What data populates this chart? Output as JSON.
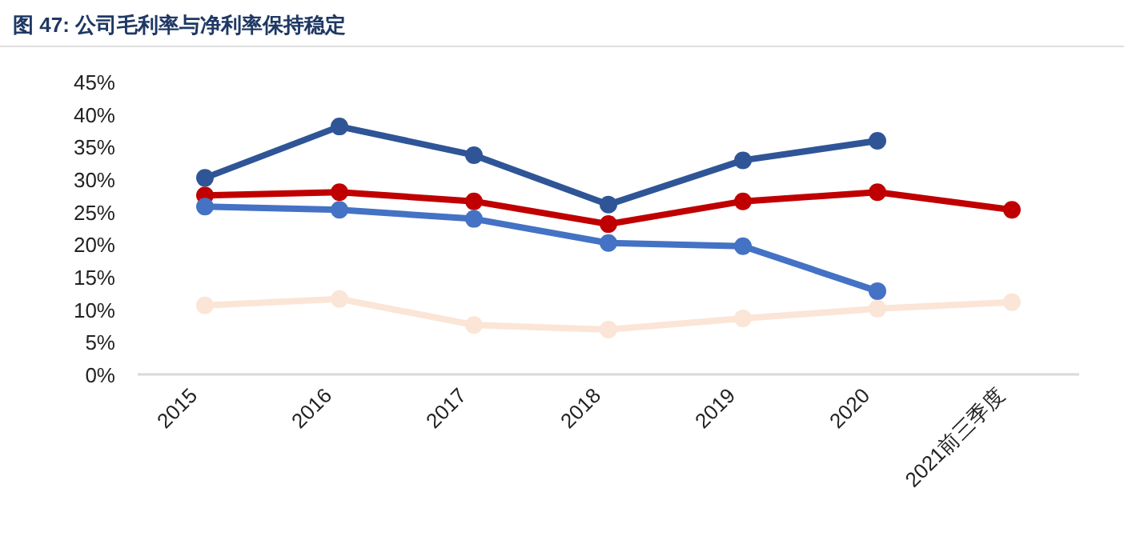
{
  "chart_data": {
    "type": "line",
    "title": "图 47: 公司毛利率与净利率保持稳定",
    "categories": [
      "2015",
      "2016",
      "2017",
      "2018",
      "2019",
      "2020",
      "2021前三季度"
    ],
    "series": [
      {
        "color": "#2f5597",
        "values": [
          30.2,
          38.1,
          33.7,
          26.1,
          32.9,
          35.9,
          null
        ]
      },
      {
        "color": "#c00000",
        "values": [
          27.5,
          28.0,
          26.6,
          23.1,
          26.6,
          28.0,
          25.3
        ]
      },
      {
        "color": "#4472c4",
        "values": [
          25.8,
          25.3,
          23.9,
          20.2,
          19.7,
          12.8,
          null
        ]
      },
      {
        "color": "#fbe5d6",
        "values": [
          10.6,
          11.6,
          7.6,
          6.9,
          8.6,
          10.1,
          11.1
        ]
      }
    ],
    "ylim": [
      0,
      45
    ],
    "yticks": [
      {
        "value": 0,
        "label": "0%"
      },
      {
        "value": 5,
        "label": "5%"
      },
      {
        "value": 10,
        "label": "10%"
      },
      {
        "value": 15,
        "label": "15%"
      },
      {
        "value": 20,
        "label": "20%"
      },
      {
        "value": 25,
        "label": "25%"
      },
      {
        "value": 30,
        "label": "30%"
      },
      {
        "value": 35,
        "label": "35%"
      },
      {
        "value": 40,
        "label": "40%"
      },
      {
        "value": 45,
        "label": "45%"
      }
    ],
    "marker": "circle",
    "line_style": "solid",
    "grid": false
  }
}
